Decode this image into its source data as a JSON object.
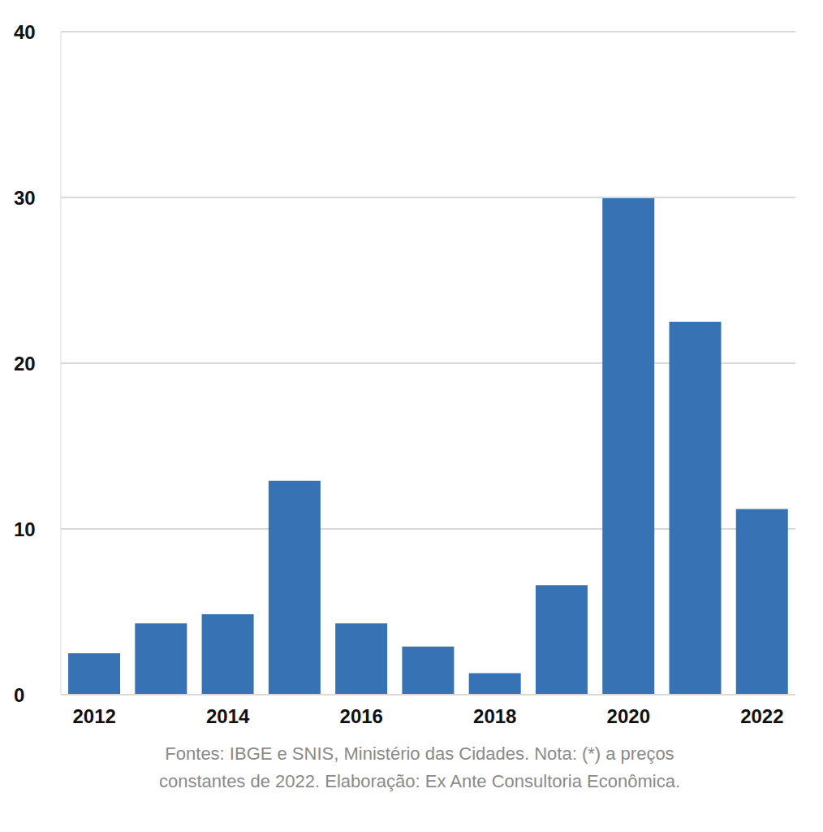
{
  "chart_data": {
    "type": "bar",
    "categories": [
      "2012",
      null,
      "2014",
      null,
      "2016",
      null,
      "2018",
      null,
      "2020",
      null,
      "2022"
    ],
    "values": [
      2.5,
      4.3,
      4.85,
      12.9,
      4.3,
      2.9,
      1.3,
      6.6,
      29.95,
      22.5,
      11.2
    ],
    "color": "#3672b4",
    "ylim": [
      0,
      40
    ],
    "yticks": [
      0,
      10,
      20,
      30,
      40
    ],
    "grid": true,
    "note": [
      "Fontes: IBGE e SNIS, Ministério das Cidades. Nota: (*) a preços",
      "constantes de 2022. Elaboração: Ex Ante Consultoria Econômica."
    ]
  }
}
